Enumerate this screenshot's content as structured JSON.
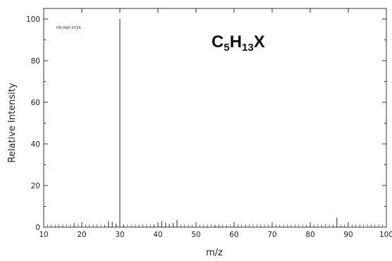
{
  "chart_data": {
    "type": "bar",
    "title": "C5H13X",
    "formula_parts": {
      "a": "C",
      "a_sub": "5",
      "b": "H",
      "b_sub": "13",
      "c": "X"
    },
    "annotation": "HS-NW-3726",
    "xlabel": "m/z",
    "ylabel": "Relative Intensity",
    "xlim": [
      10,
      100
    ],
    "ylim": [
      0,
      100
    ],
    "x_ticks": [
      10,
      20,
      30,
      40,
      50,
      60,
      70,
      80,
      90,
      100
    ],
    "y_ticks": [
      0,
      20,
      40,
      60,
      80,
      100
    ],
    "grid": false,
    "peaks": [
      {
        "mz": 15,
        "intensity": 0.5
      },
      {
        "mz": 18,
        "intensity": 2
      },
      {
        "mz": 26,
        "intensity": 0.6
      },
      {
        "mz": 27,
        "intensity": 3
      },
      {
        "mz": 28,
        "intensity": 2.6
      },
      {
        "mz": 29,
        "intensity": 1.6
      },
      {
        "mz": 30,
        "intensity": 100
      },
      {
        "mz": 31,
        "intensity": 1.2
      },
      {
        "mz": 39,
        "intensity": 1.2
      },
      {
        "mz": 41,
        "intensity": 3
      },
      {
        "mz": 42,
        "intensity": 2.2
      },
      {
        "mz": 43,
        "intensity": 1.5
      },
      {
        "mz": 44,
        "intensity": 2
      },
      {
        "mz": 45,
        "intensity": 3.5
      },
      {
        "mz": 55,
        "intensity": 0.8
      },
      {
        "mz": 56,
        "intensity": 0.5
      },
      {
        "mz": 58,
        "intensity": 0.3
      },
      {
        "mz": 86,
        "intensity": 0.5
      },
      {
        "mz": 87,
        "intensity": 4.5
      },
      {
        "mz": 88,
        "intensity": 0.3
      }
    ]
  }
}
